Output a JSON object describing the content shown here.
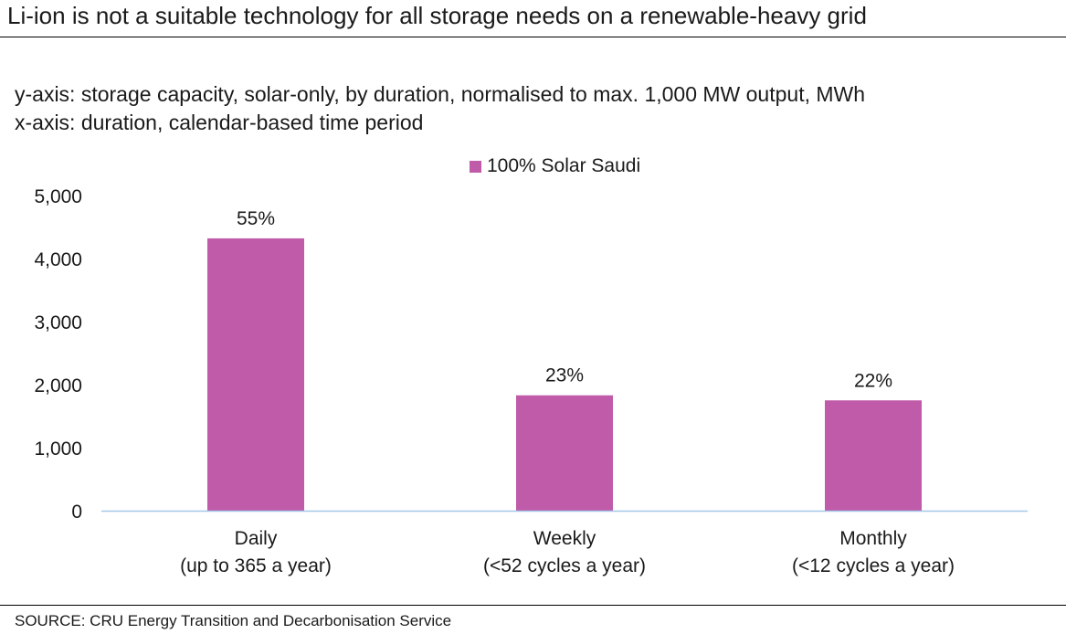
{
  "header": {
    "title": "Li-ion is not a suitable technology for all storage needs on a renewable-heavy grid",
    "subtitle_y": "y-axis: storage capacity, solar-only, by duration, normalised to max. 1,000 MW output, MWh",
    "subtitle_x": "x-axis: duration, calendar-based time period"
  },
  "footer": {
    "source": "SOURCE: CRU Energy Transition and Decarbonisation Service"
  },
  "chart_data": {
    "type": "bar",
    "categories": [
      [
        "Daily",
        "(up to 365 a year)"
      ],
      [
        "Weekly",
        "(<52 cycles a year)"
      ],
      [
        "Monthly",
        "(<12 cycles a year)"
      ]
    ],
    "series": [
      {
        "name": "100% Solar Saudi",
        "color": "#bf5ba8",
        "values": [
          4320,
          1830,
          1750
        ],
        "labels": [
          "55%",
          "23%",
          "22%"
        ]
      }
    ],
    "ylim": [
      0,
      5000
    ],
    "yticks": [
      0,
      1000,
      2000,
      3000,
      4000,
      5000
    ],
    "ytick_labels": [
      "0",
      "1,000",
      "2,000",
      "3,000",
      "4,000",
      "5,000"
    ],
    "legend_position": "top-center",
    "grid": false,
    "axis_color": "#a6c8e8"
  }
}
